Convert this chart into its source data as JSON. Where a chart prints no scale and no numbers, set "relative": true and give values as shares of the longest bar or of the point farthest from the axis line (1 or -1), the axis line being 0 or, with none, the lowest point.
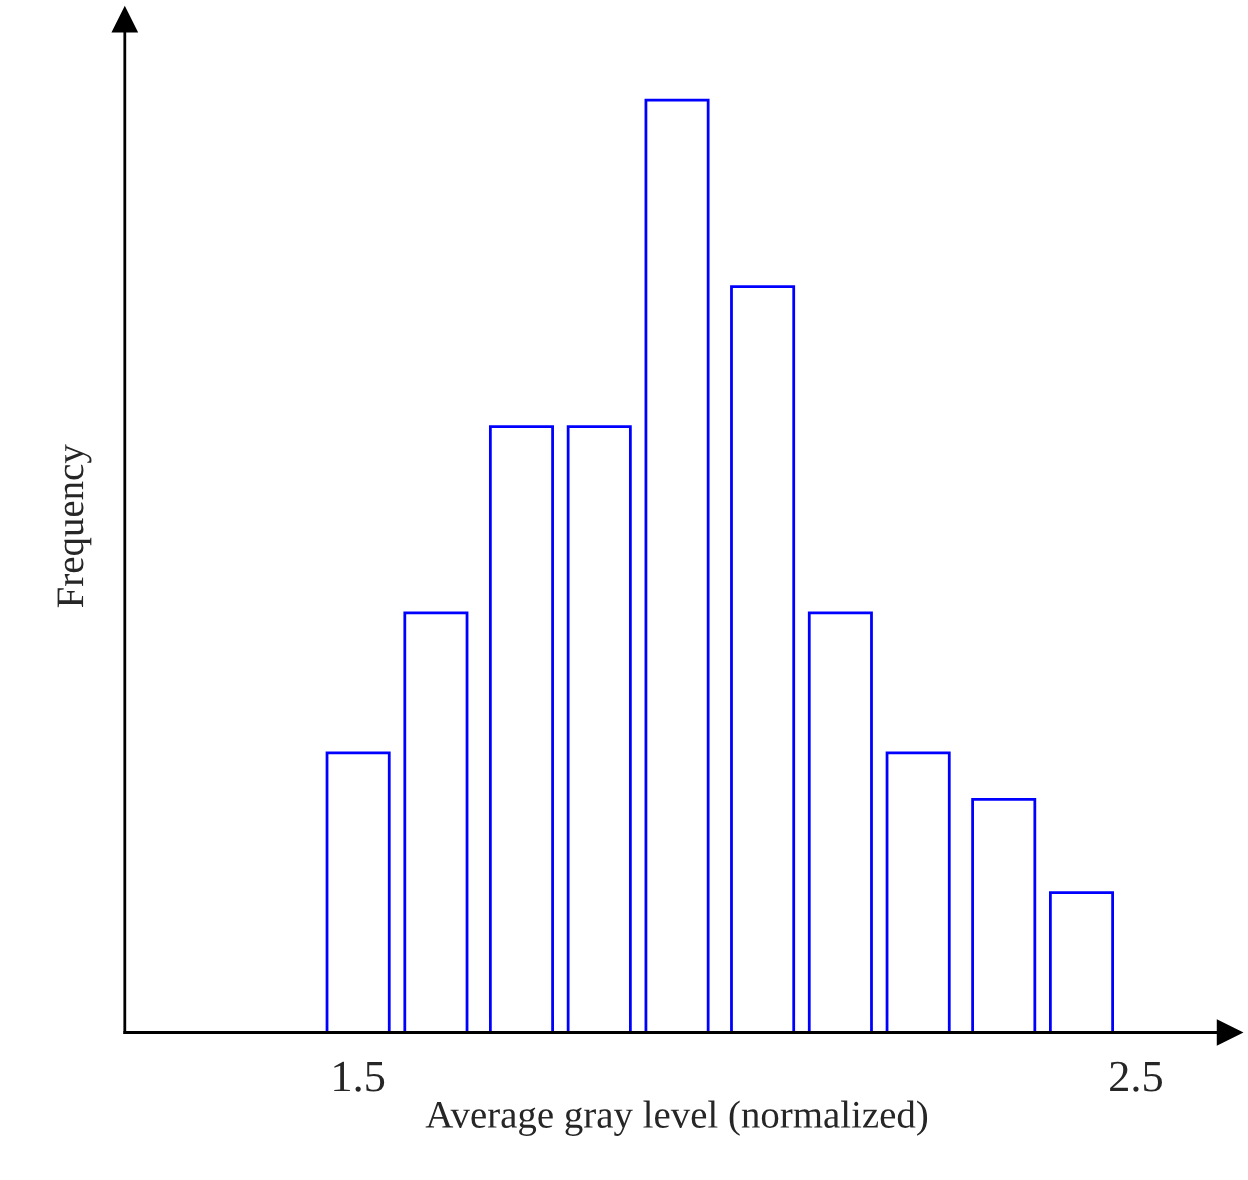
{
  "chart_data": {
    "type": "bar",
    "relative": true,
    "xlabel": "Average gray level (normalized)",
    "ylabel": "Frequency",
    "x": [
      1.5,
      1.6,
      1.71,
      1.81,
      1.91,
      2.02,
      2.12,
      2.22,
      2.33,
      2.43
    ],
    "values": [
      0.3,
      0.45,
      0.65,
      0.65,
      1,
      0.8,
      0.45,
      0.3,
      0.25,
      0.15
    ],
    "color": "#0000ff",
    "xlim": [
      1.2,
      2.62
    ],
    "xticks": [
      1.5,
      2.5
    ],
    "grid": false,
    "legend": false
  }
}
